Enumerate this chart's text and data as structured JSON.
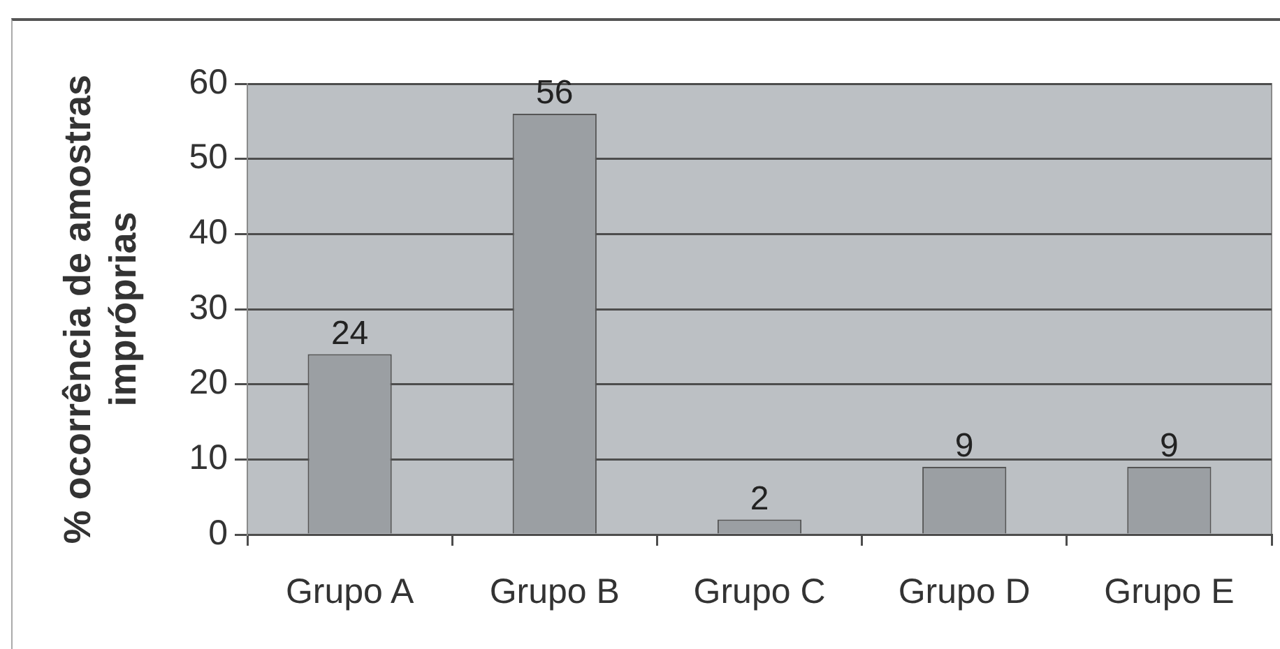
{
  "chart_data": {
    "type": "bar",
    "ylabel": "% ocorrência de amostras impróprias",
    "categories": [
      "Grupo A",
      "Grupo B",
      "Grupo C",
      "Grupo D",
      "Grupo E"
    ],
    "values": [
      24,
      56,
      2,
      9,
      9
    ],
    "color": "#9b9fa3",
    "ylim": [
      0,
      60
    ],
    "yticks": [
      0,
      10,
      20,
      30,
      40,
      50,
      60
    ],
    "grid": "y",
    "data_labels": true
  }
}
